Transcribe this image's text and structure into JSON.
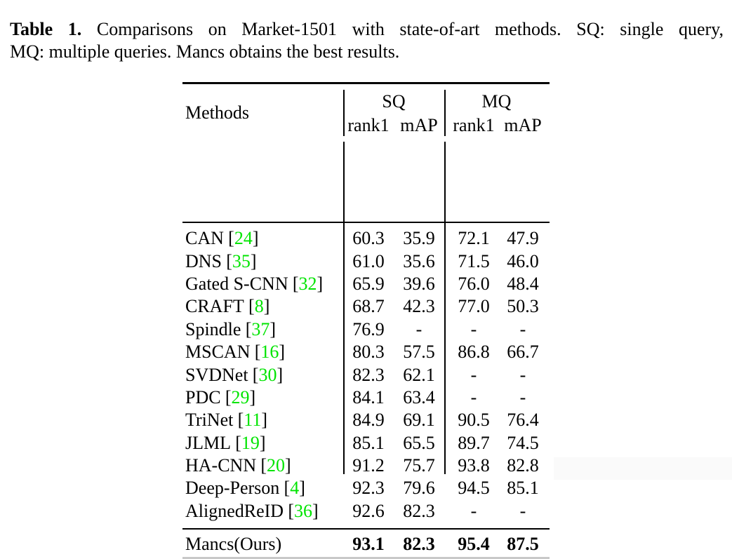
{
  "caption": {
    "label": "Table 1.",
    "line1_rest": "Comparisons on Market-1501 with state-of-art methods. SQ: single query,",
    "line2": "MQ: multiple queries. Mancs obtains the best results."
  },
  "symbols": {
    "bracket_open": "[",
    "bracket_close": "]"
  },
  "colors": {
    "citation_green": "#00e400",
    "rule_black": "#000000",
    "bottom_rule_gray": "#c8c8c8"
  },
  "table": {
    "header": {
      "methods": "Methods",
      "sq": "SQ",
      "mq": "MQ",
      "rank1": "rank1",
      "map": "mAP"
    },
    "rows": [
      {
        "method": "CAN",
        "cite": "24",
        "sq_rank1": "60.3",
        "sq_map": "35.9",
        "mq_rank1": "72.1",
        "mq_map": "47.9"
      },
      {
        "method": "DNS",
        "cite": "35",
        "sq_rank1": "61.0",
        "sq_map": "35.6",
        "mq_rank1": "71.5",
        "mq_map": "46.0"
      },
      {
        "method": "Gated S-CNN",
        "cite": "32",
        "sq_rank1": "65.9",
        "sq_map": "39.6",
        "mq_rank1": "76.0",
        "mq_map": "48.4"
      },
      {
        "method": "CRAFT",
        "cite": "8",
        "sq_rank1": "68.7",
        "sq_map": "42.3",
        "mq_rank1": "77.0",
        "mq_map": "50.3"
      },
      {
        "method": "Spindle",
        "cite": "37",
        "sq_rank1": "76.9",
        "sq_map": "-",
        "mq_rank1": "-",
        "mq_map": "-"
      },
      {
        "method": "MSCAN",
        "cite": "16",
        "sq_rank1": "80.3",
        "sq_map": "57.5",
        "mq_rank1": "86.8",
        "mq_map": "66.7"
      },
      {
        "method": "SVDNet",
        "cite": "30",
        "sq_rank1": "82.3",
        "sq_map": "62.1",
        "mq_rank1": "-",
        "mq_map": "-"
      },
      {
        "method": "PDC",
        "cite": "29",
        "sq_rank1": "84.1",
        "sq_map": "63.4",
        "mq_rank1": "-",
        "mq_map": "-"
      },
      {
        "method": "TriNet",
        "cite": "11",
        "sq_rank1": "84.9",
        "sq_map": "69.1",
        "mq_rank1": "90.5",
        "mq_map": "76.4"
      },
      {
        "method": "JLML",
        "cite": "19",
        "sq_rank1": "85.1",
        "sq_map": "65.5",
        "mq_rank1": "89.7",
        "mq_map": "74.5"
      },
      {
        "method": "HA-CNN",
        "cite": "20",
        "sq_rank1": "91.2",
        "sq_map": "75.7",
        "mq_rank1": "93.8",
        "mq_map": "82.8"
      },
      {
        "method": "Deep-Person",
        "cite": "4",
        "sq_rank1": "92.3",
        "sq_map": "79.6",
        "mq_rank1": "94.5",
        "mq_map": "85.1"
      },
      {
        "method": "AlignedReID",
        "cite": "36",
        "sq_rank1": "92.6",
        "sq_map": "82.3",
        "mq_rank1": "-",
        "mq_map": "-"
      }
    ],
    "final": {
      "method": "Mancs(Ours)",
      "sq_rank1": "93.1",
      "sq_map": "82.3",
      "mq_rank1": "95.4",
      "mq_map": "87.5"
    }
  }
}
